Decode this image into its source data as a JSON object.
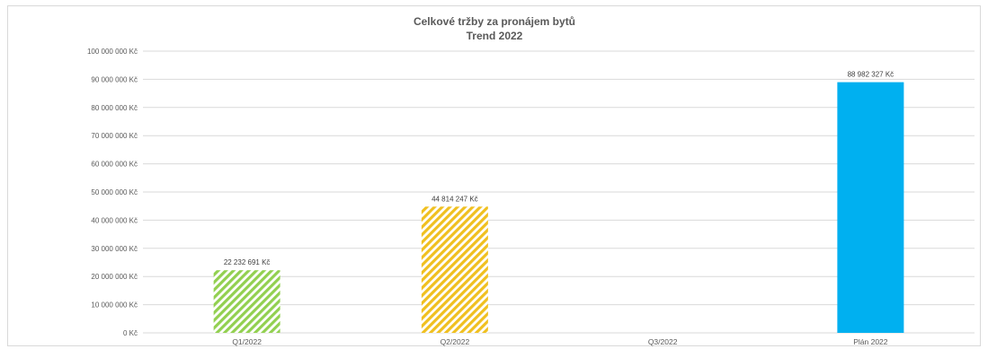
{
  "chart_data": {
    "type": "bar",
    "title": "Celkové tržby za pronájem bytů",
    "subtitle": "Trend 2022",
    "categories": [
      "Q1/2022",
      "Q2/2022",
      "Q3/2022",
      "Plán 2022"
    ],
    "values": [
      22232691,
      44814247,
      null,
      88982327
    ],
    "data_labels": [
      "22 232 691 Kč",
      "44 814 247 Kč",
      "",
      "88 982 327 Kč"
    ],
    "bar_styles": [
      {
        "color": "#92d050",
        "pattern": "diagonal-stripes"
      },
      {
        "color": "#f0c020",
        "pattern": "diagonal-stripes"
      },
      {
        "color": "#ffffff",
        "pattern": "none"
      },
      {
        "color": "#00b0f0",
        "pattern": "solid"
      }
    ],
    "ylim": [
      0,
      100000000
    ],
    "y_tick_labels": [
      "0 Kč",
      "10 000 000 Kč",
      "20 000 000 Kč",
      "30 000 000 Kč",
      "40 000 000 Kč",
      "50 000 000 Kč",
      "60 000 000 Kč",
      "70 000 000 Kč",
      "80 000 000 Kč",
      "90 000 000 Kč",
      "100 000 000 Kč"
    ],
    "y_tick_values": [
      0,
      10000000,
      20000000,
      30000000,
      40000000,
      50000000,
      60000000,
      70000000,
      80000000,
      90000000,
      100000000
    ],
    "grid": true,
    "legend": "none",
    "xlabel": "",
    "ylabel": ""
  }
}
